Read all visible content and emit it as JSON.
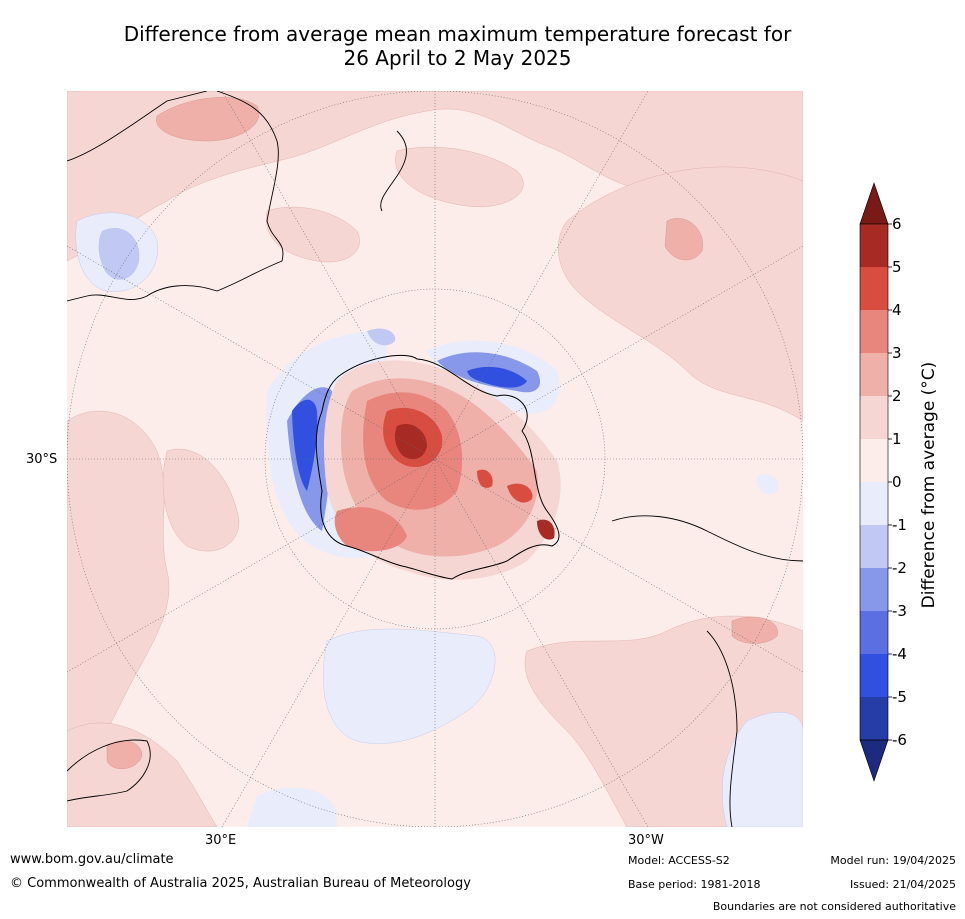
{
  "title_line1": "Difference from average mean maximum temperature forecast for",
  "title_line2": "26 April to 2 May 2025",
  "axis_labels": {
    "lat": "30°S",
    "lon_east": "30°E",
    "lon_west": "30°W"
  },
  "colorbar": {
    "label": "Difference from average (°C)",
    "ticks": [
      "6",
      "5",
      "4",
      "3",
      "2",
      "1",
      "0",
      "-1",
      "-2",
      "-3",
      "-4",
      "-5",
      "-6"
    ],
    "colors": [
      "#7a1a17",
      "#a82a25",
      "#d94c40",
      "#e8867e",
      "#efb0aa",
      "#f6d6d3",
      "#fcecea",
      "#e9edfb",
      "#c0c8f3",
      "#8797ea",
      "#5b6fe3",
      "#3150df",
      "#263da8",
      "#1c2a80"
    ]
  },
  "footer": {
    "url": "www.bom.gov.au/climate",
    "copyright": "© Commonwealth of Australia 2025, Australian Bureau of Meteorology",
    "model": "Model: ACCESS-S2",
    "base_period": "Base period: 1981-2018",
    "model_run": "Model run: 19/04/2025",
    "issued": "Issued: 21/04/2025",
    "disclaimer": "Boundaries are not considered authoritative"
  }
}
